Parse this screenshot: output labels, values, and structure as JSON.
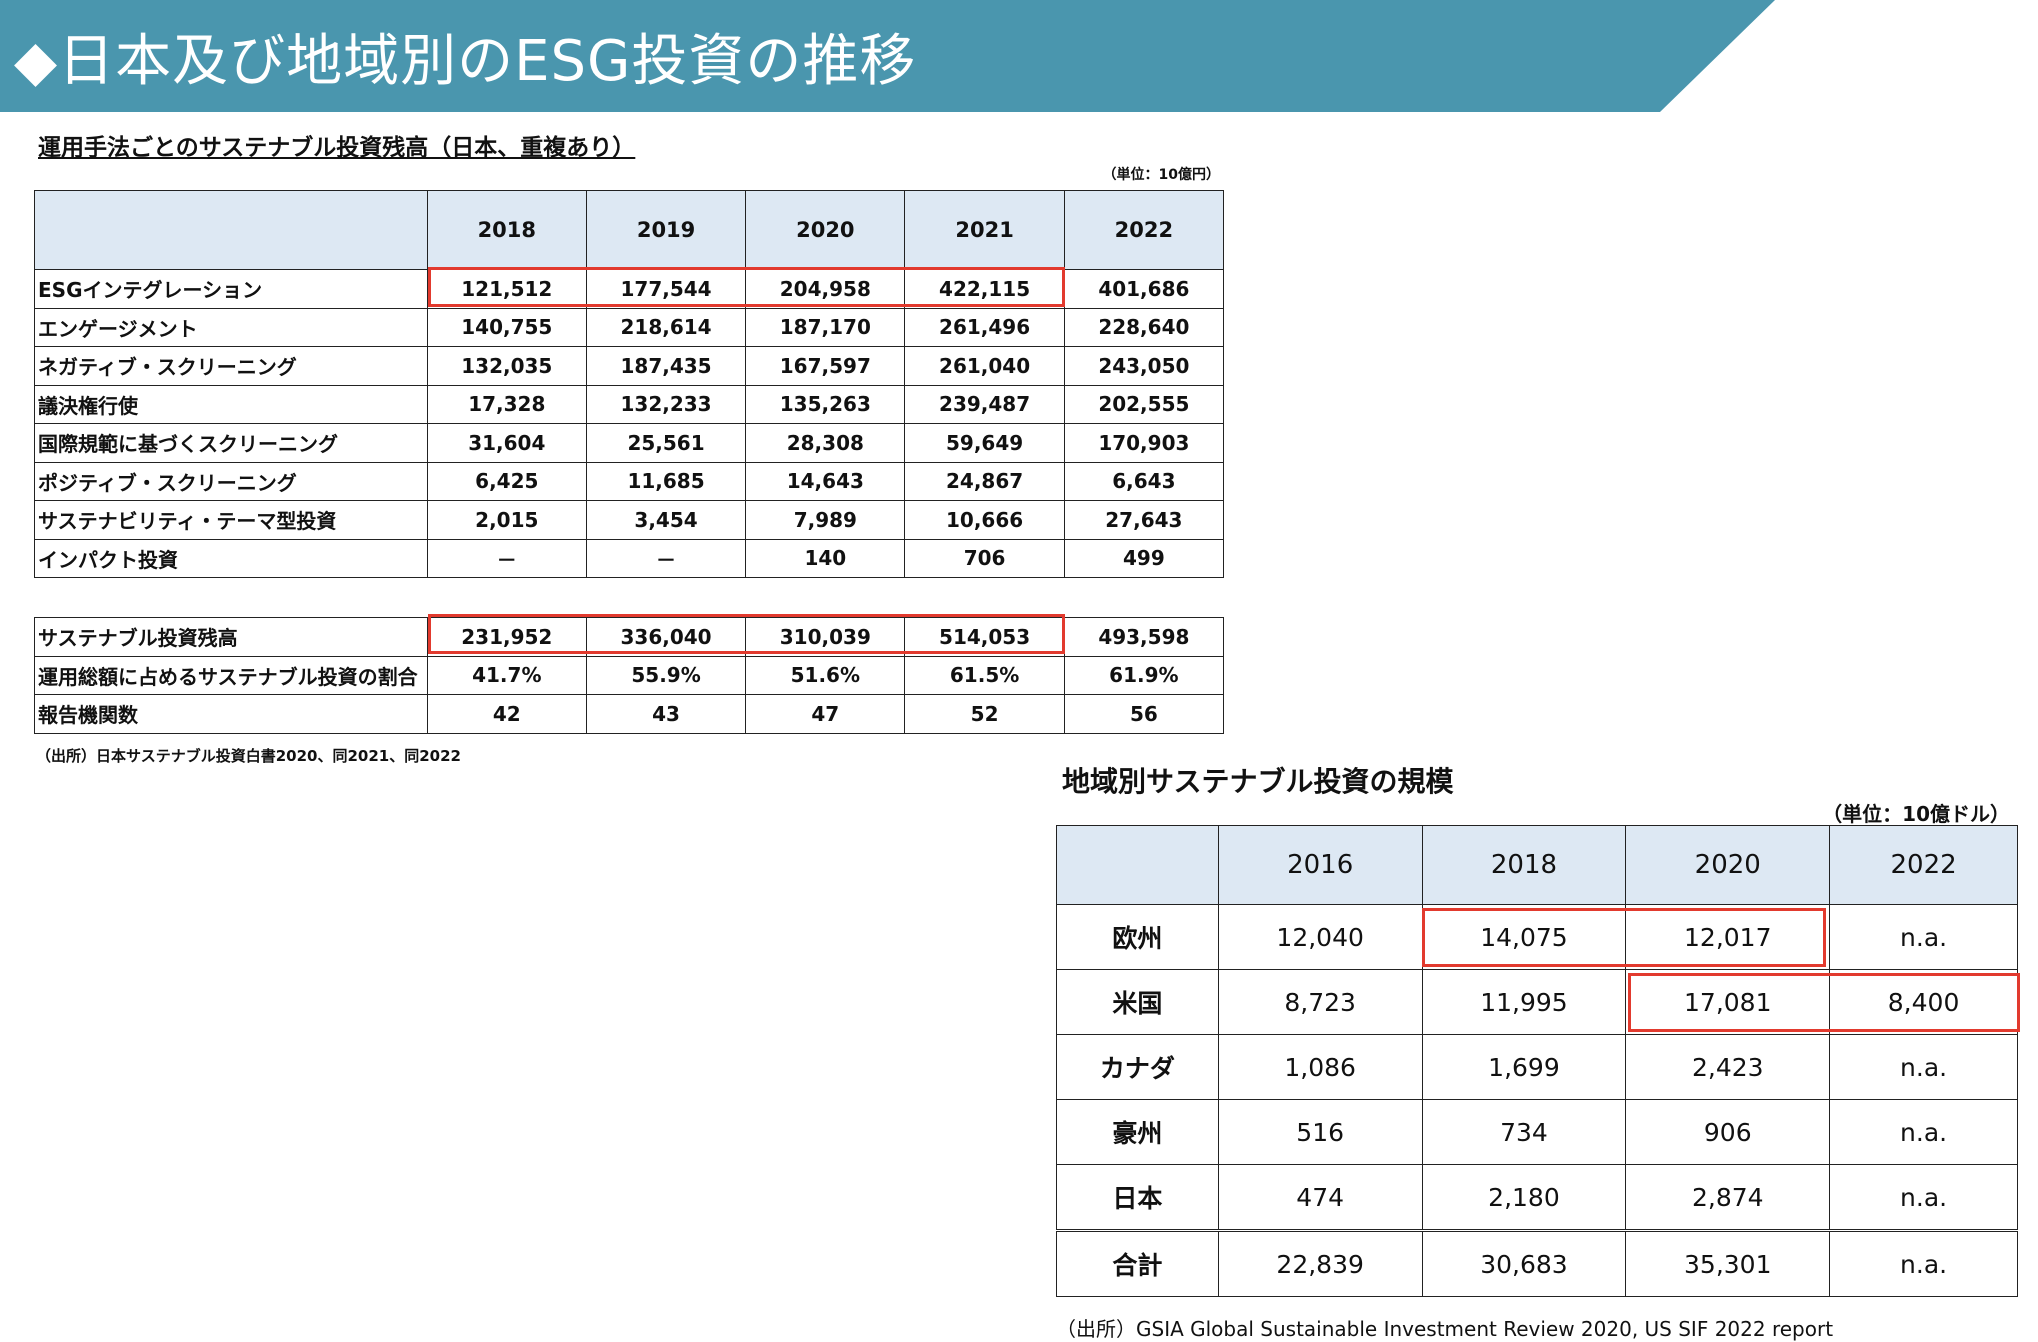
{
  "header": {
    "title": "◆日本及び地域別のESG投資の推移"
  },
  "japan_table": {
    "title": "運用手法ごとのサステナブル投資残高（日本、重複あり）",
    "unit": "（単位：10億円）",
    "years": [
      "2018",
      "2019",
      "2020",
      "2021",
      "2022"
    ],
    "rows": [
      {
        "label": "ESGインテグレーション",
        "values": [
          "121,512",
          "177,544",
          "204,958",
          "422,115",
          "401,686"
        ]
      },
      {
        "label": "エンゲージメント",
        "values": [
          "140,755",
          "218,614",
          "187,170",
          "261,496",
          "228,640"
        ]
      },
      {
        "label": "ネガティブ・スクリーニング",
        "values": [
          "132,035",
          "187,435",
          "167,597",
          "261,040",
          "243,050"
        ]
      },
      {
        "label": "議決権行使",
        "values": [
          "17,328",
          "132,233",
          "135,263",
          "239,487",
          "202,555"
        ]
      },
      {
        "label": "国際規範に基づくスクリーニング",
        "values": [
          "31,604",
          "25,561",
          "28,308",
          "59,649",
          "170,903"
        ]
      },
      {
        "label": "ポジティブ・スクリーニング",
        "values": [
          "6,425",
          "11,685",
          "14,643",
          "24,867",
          "6,643"
        ]
      },
      {
        "label": "サステナビリティ・テーマ型投資",
        "values": [
          "2,015",
          "3,454",
          "7,989",
          "10,666",
          "27,643"
        ]
      },
      {
        "label": "インパクト投資",
        "values": [
          "－",
          "－",
          "140",
          "706",
          "499"
        ]
      }
    ],
    "summary_rows": [
      {
        "label": "サステナブル投資残高",
        "values": [
          "231,952",
          "336,040",
          "310,039",
          "514,053",
          "493,598"
        ]
      },
      {
        "label": "運用総額に占めるサステナブル投資の割合",
        "values": [
          "41.7%",
          "55.9%",
          "51.6%",
          "61.5%",
          "61.9%"
        ]
      },
      {
        "label": "報告機関数",
        "values": [
          "42",
          "43",
          "47",
          "52",
          "56"
        ]
      }
    ],
    "source": "（出所）日本サステナブル投資白書2020、同2021、同2022"
  },
  "region_table": {
    "title": "地域別サステナブル投資の規模",
    "unit": "（単位：10億ドル）",
    "years": [
      "2016",
      "2018",
      "2020",
      "2022"
    ],
    "rows": [
      {
        "label": "欧州",
        "values": [
          "12,040",
          "14,075",
          "12,017",
          "n.a."
        ]
      },
      {
        "label": "米国",
        "values": [
          "8,723",
          "11,995",
          "17,081",
          "8,400"
        ]
      },
      {
        "label": "カナダ",
        "values": [
          "1,086",
          "1,699",
          "2,423",
          "n.a."
        ]
      },
      {
        "label": "豪州",
        "values": [
          "516",
          "734",
          "906",
          "n.a."
        ]
      },
      {
        "label": "日本",
        "values": [
          "474",
          "2,180",
          "2,874",
          "n.a."
        ]
      },
      {
        "label": "合計",
        "values": [
          "22,839",
          "30,683",
          "35,301",
          "n.a."
        ]
      }
    ],
    "source": "（出所）GSIA Global Sustainable Investment Review 2020, US SIF 2022 report"
  },
  "highlight_color": "#e23a2e",
  "header_color": "#4a96ae"
}
